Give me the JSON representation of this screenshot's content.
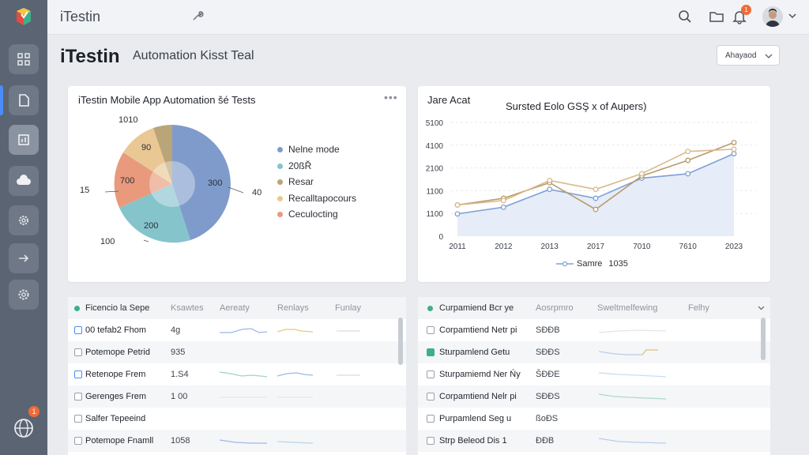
{
  "app": {
    "name": "iTestin",
    "brand_colors": [
      "#e84c3d",
      "#4b8df8",
      "#3fae8c"
    ]
  },
  "topbar": {
    "icons": [
      "wrench-icon",
      "search-icon",
      "folder-icon",
      "bell-icon",
      "avatar",
      "chevron-down-icon"
    ],
    "notification_count": "1"
  },
  "sidebar": {
    "items": [
      {
        "name": "grid-icon"
      },
      {
        "name": "document-icon"
      },
      {
        "name": "bar-chart-icon"
      },
      {
        "name": "cloud-icon"
      },
      {
        "name": "gear-icon"
      },
      {
        "name": "arrow-right-icon"
      },
      {
        "name": "settings-icon"
      }
    ],
    "bottom_badge": "1"
  },
  "header": {
    "title": "iTestin",
    "subtitle": "Automation Kisst Teal",
    "dropdown_label": "Ahayaod"
  },
  "pie_card": {
    "title": "iTestin Mobile App Automation šé Tests",
    "menu": "•••",
    "labels": {
      "top": "1010",
      "a": "90",
      "b": "700",
      "c": "300",
      "d": "200",
      "left": "15",
      "right": "40",
      "bottom": "100"
    },
    "legend": [
      {
        "label": "Nelne mode",
        "color": "#7f9bcb"
      },
      {
        "label": "20ßŘ",
        "color": "#86c4cc"
      },
      {
        "label": "Resar",
        "color": "#b9a578"
      },
      {
        "label": "Recalltapocours",
        "color": "#e9c894"
      },
      {
        "label": "Ceculocting",
        "color": "#e99a7c"
      }
    ]
  },
  "line_card": {
    "title": "Jare Acat",
    "legend_label": "Samre",
    "legend_value": "1035"
  },
  "chart_data": {
    "type": "line",
    "title": "Sursted Eolo GSŞ x of Aupers)",
    "x": [
      "2011",
      "2012",
      "2013",
      "2017",
      "7010",
      "7610",
      "2023"
    ],
    "yticks": [
      "0",
      "1100",
      "1100",
      "2100",
      "4100",
      "5100"
    ],
    "ylim": [
      0,
      5100
    ],
    "series": [
      {
        "values": [
          1000,
          1300,
          2100,
          1700,
          2600,
          2800,
          3700
        ]
      },
      {
        "values": [
          1400,
          1700,
          2400,
          1200,
          2700,
          3400,
          4200
        ]
      },
      {
        "values": [
          1400,
          1600,
          2500,
          2100,
          2800,
          3800,
          3900
        ]
      }
    ],
    "colors": [
      "#7fa0d6",
      "#b89b6a",
      "#d9b98a"
    ],
    "grid": true
  },
  "table_left": {
    "headers": [
      "Ficencio la Sepe",
      "Ksawtes",
      "Aereaty",
      "Renlays",
      "Funlay"
    ],
    "rows": [
      {
        "name": "00 tefab2 Fhom",
        "value": "4g"
      },
      {
        "name": "Potemope Petrid",
        "value": "935"
      },
      {
        "name": "Retenope Frem",
        "value": "1.S4"
      },
      {
        "name": "Gerenges Frem",
        "value": "1 00"
      },
      {
        "name": "Salfer Tepeeind",
        "value": ""
      },
      {
        "name": "Potemope Fnamll",
        "value": "1058"
      }
    ]
  },
  "table_right": {
    "headers": [
      "Curpamiend Bcr ye",
      "Aosrpmro",
      "Sweltmelfewing",
      "Felhy"
    ],
    "rows": [
      {
        "name": "Corpamtiend Netr pi",
        "value": "SÐÐB"
      },
      {
        "name": "Sturpamlend Getu",
        "value": "SÐÐS"
      },
      {
        "name": "Sturpamiemd Ner Ńy",
        "value": "ŠÐÐE"
      },
      {
        "name": "Corpamtiend Nelr pi",
        "value": "SÐÐS"
      },
      {
        "name": "Purpamlend Seg u",
        "value": "ßoÐS"
      },
      {
        "name": "Strp Beleod Dis 1",
        "value": "ÐÐB"
      }
    ]
  }
}
